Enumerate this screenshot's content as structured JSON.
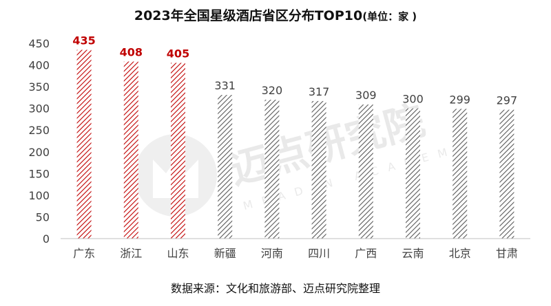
{
  "chart_data": {
    "type": "bar",
    "title": "2023年全国星级酒店省区分布TOP10",
    "title_unit": "(单位：家 )",
    "categories": [
      "广东",
      "浙江",
      "山东",
      "新疆",
      "河南",
      "四川",
      "广西",
      "云南",
      "北京",
      "甘肃"
    ],
    "values": [
      435,
      408,
      405,
      331,
      320,
      317,
      309,
      300,
      299,
      297
    ],
    "highlight_count": 3,
    "highlight_color": "#c00000",
    "normal_color": "#595959",
    "ylim": [
      0,
      450
    ],
    "yticks": [
      0,
      50,
      100,
      150,
      200,
      250,
      300,
      350,
      400,
      450
    ],
    "grid": false,
    "xlabel": "",
    "ylabel": ""
  },
  "source": "数据来源：文化和旅游部、迈点研究院整理",
  "watermark": {
    "text_cn": "迈点研究院",
    "text_en": "MEADIN ACADEMY"
  }
}
